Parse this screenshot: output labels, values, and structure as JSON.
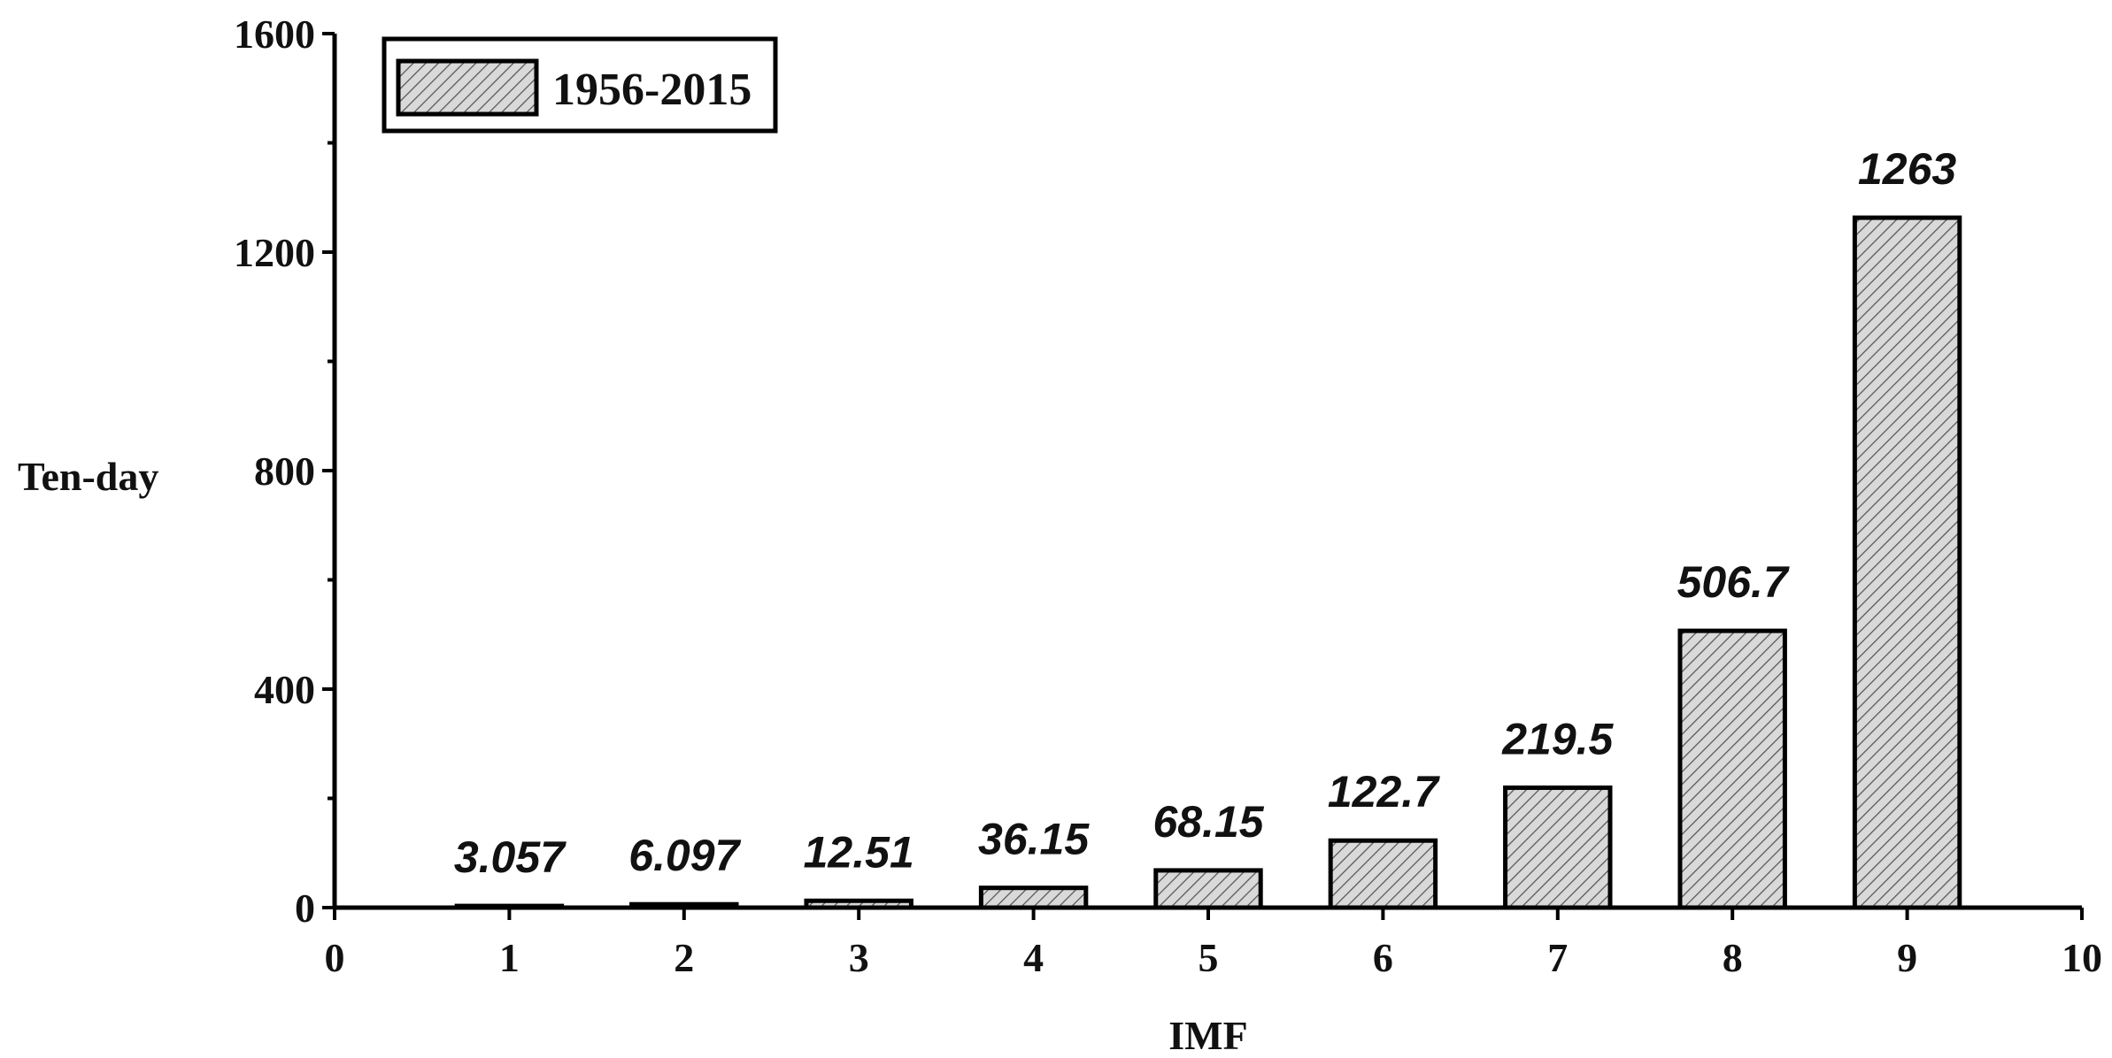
{
  "chart_data": {
    "type": "bar",
    "x": [
      1,
      2,
      3,
      4,
      5,
      6,
      7,
      8,
      9
    ],
    "series": [
      {
        "name": "1956-2015",
        "values": [
          3.057,
          6.097,
          12.51,
          36.15,
          68.15,
          122.7,
          219.5,
          506.7,
          1263
        ]
      }
    ],
    "data_labels": [
      "3.057",
      "6.097",
      "12.51",
      "36.15",
      "68.15",
      "122.7",
      "219.5",
      "506.7",
      "1263"
    ],
    "xlabel": "IMF",
    "ylabel": "Ten-day",
    "xlim": [
      0,
      10
    ],
    "ylim": [
      0,
      1600
    ],
    "x_ticks": [
      0,
      1,
      2,
      3,
      4,
      5,
      6,
      7,
      8,
      9,
      10
    ],
    "y_ticks": [
      0,
      400,
      800,
      1200,
      1600
    ],
    "x_tick_labels": [
      "0",
      "1",
      "2",
      "3",
      "4",
      "5",
      "6",
      "7",
      "8",
      "9",
      "10"
    ],
    "y_tick_labels": [
      "0",
      "400",
      "800",
      "1200",
      "1600"
    ],
    "legend": {
      "entries": [
        "1956-2015"
      ],
      "placement": "top-left"
    },
    "grid": false,
    "bar_fill": "hatched",
    "colors": {
      "bar_fill": "#d9d9d9",
      "hatch": "#555555",
      "stroke": "#000000"
    }
  }
}
